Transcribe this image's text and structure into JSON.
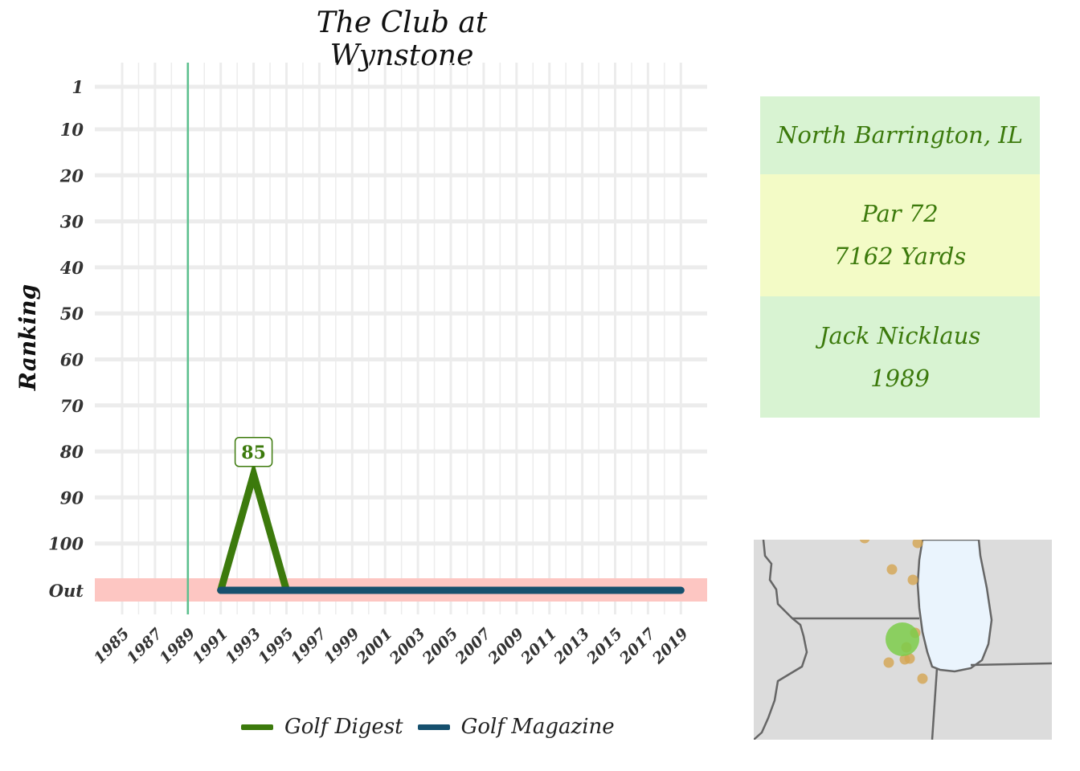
{
  "title": "The Club at Wynstone",
  "chart_data": {
    "type": "line",
    "ylabel": "Ranking",
    "y_ticks": [
      "1",
      "10",
      "20",
      "30",
      "40",
      "50",
      "60",
      "70",
      "80",
      "90",
      "100",
      "Out"
    ],
    "x_ticks": [
      "1985",
      "1987",
      "1989",
      "1991",
      "1993",
      "1995",
      "1997",
      "1999",
      "2001",
      "2003",
      "2005",
      "2007",
      "2009",
      "2011",
      "2013",
      "2015",
      "2017",
      "2019"
    ],
    "xlim": [
      1985,
      2019
    ],
    "ylim": [
      1,
      "Out"
    ],
    "vline_year": 1989,
    "series": [
      {
        "name": "Golf Digest",
        "color": "#3c7a0c",
        "points": [
          {
            "x": 1991,
            "y": "Out"
          },
          {
            "x": 1993,
            "y": 85
          },
          {
            "x": 1995,
            "y": "Out"
          }
        ]
      },
      {
        "name": "Golf Magazine",
        "color": "#16506e",
        "points": [
          {
            "x": 1991,
            "y": "Out"
          },
          {
            "x": 2019,
            "y": "Out"
          }
        ]
      }
    ],
    "annotations": [
      {
        "x": 1993,
        "y": 85,
        "text": "85"
      }
    ],
    "out_band_color": "#fdc6c2",
    "vline_color": "#5cc08e",
    "grid": true,
    "legend_position": "bottom"
  },
  "info": {
    "location": "North Barrington, IL",
    "par": "Par 72",
    "yards": "7162 Yards",
    "designer": "Jack Nicklaus",
    "year": "1989"
  },
  "legend": [
    {
      "label": "Golf Digest",
      "color": "#3c7a0c"
    },
    {
      "label": "Golf Magazine",
      "color": "#16506e"
    }
  ],
  "map": {
    "land_color": "#dcdcdc",
    "water_color": "#eaf4fd",
    "border_color": "#666666",
    "highlight_color": "#7ccc4a",
    "other_courses_color": "#d4a551"
  }
}
